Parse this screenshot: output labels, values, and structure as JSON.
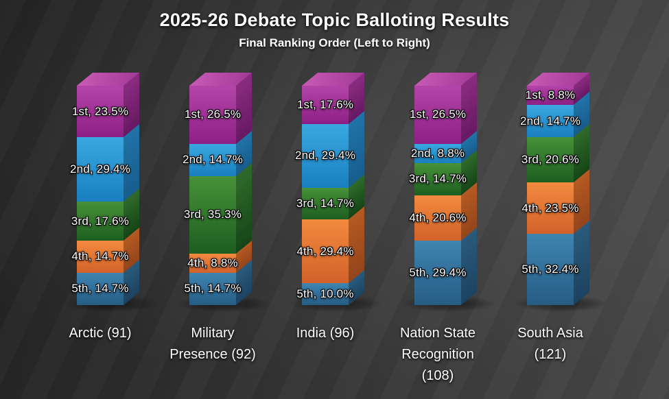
{
  "title": "2025-26 Debate Topic Balloting Results",
  "subtitle": "Final Ranking Order (Left to Right)",
  "chart_data": {
    "type": "bar",
    "subtype": "100-percent-stacked-3d-column",
    "title": "2025-26 Debate Topic Balloting Results",
    "subtitle": "Final Ranking Order (Left to Right)",
    "orientation": "vertical",
    "legend_position": "none",
    "grid": false,
    "axes_visible": false,
    "ranks": [
      "1st",
      "2nd",
      "3rd",
      "4th",
      "5th"
    ],
    "categories": [
      "Arctic (91)",
      "Military Presence (92)",
      "India (96)",
      "Nation State Recognition (108)",
      "South Asia (121)"
    ],
    "series": [
      {
        "name": "1st",
        "color": "#a23597",
        "values": [
          23.5,
          26.5,
          17.6,
          26.5,
          8.8
        ]
      },
      {
        "name": "2nd",
        "color": "#2796d0",
        "values": [
          29.4,
          14.7,
          29.4,
          8.8,
          14.7
        ]
      },
      {
        "name": "3rd",
        "color": "#2f7a2c",
        "values": [
          17.6,
          35.3,
          14.7,
          14.7,
          20.6
        ]
      },
      {
        "name": "4th",
        "color": "#e27532",
        "values": [
          14.7,
          8.8,
          29.4,
          20.6,
          23.5
        ]
      },
      {
        "name": "5th",
        "color": "#30709b",
        "values": [
          14.7,
          14.7,
          10.0,
          29.4,
          32.4
        ]
      }
    ],
    "bars": [
      {
        "category": "Arctic (91)",
        "segments": [
          {
            "rank": "1st",
            "pct": 23.5,
            "label": "1st, 23.5%"
          },
          {
            "rank": "2nd",
            "pct": 29.4,
            "label": "2nd, 29.4%"
          },
          {
            "rank": "3rd",
            "pct": 17.6,
            "label": "3rd, 17.6%"
          },
          {
            "rank": "4th",
            "pct": 14.7,
            "label": "4th, 14.7%"
          },
          {
            "rank": "5th",
            "pct": 14.7,
            "label": "5th, 14.7%"
          }
        ]
      },
      {
        "category": "Military Presence (92)",
        "segments": [
          {
            "rank": "1st",
            "pct": 26.5,
            "label": "1st, 26.5%"
          },
          {
            "rank": "2nd",
            "pct": 14.7,
            "label": "2nd, 14.7%"
          },
          {
            "rank": "3rd",
            "pct": 35.3,
            "label": "3rd, 35.3%"
          },
          {
            "rank": "4th",
            "pct": 8.8,
            "label": "4th, 8.8%"
          },
          {
            "rank": "5th",
            "pct": 14.7,
            "label": "5th, 14.7%"
          }
        ]
      },
      {
        "category": "India (96)",
        "segments": [
          {
            "rank": "1st",
            "pct": 17.6,
            "label": "1st, 17.6%"
          },
          {
            "rank": "2nd",
            "pct": 29.4,
            "label": "2nd, 29.4%"
          },
          {
            "rank": "3rd",
            "pct": 14.7,
            "label": "3rd, 14.7%"
          },
          {
            "rank": "4th",
            "pct": 29.4,
            "label": "4th, 29.4%"
          },
          {
            "rank": "5th",
            "pct": 10.0,
            "label": "5th, 10.0%"
          }
        ]
      },
      {
        "category": "Nation State Recognition (108)",
        "segments": [
          {
            "rank": "1st",
            "pct": 26.5,
            "label": "1st, 26.5%"
          },
          {
            "rank": "2nd",
            "pct": 8.8,
            "label": "2nd, 8.8%"
          },
          {
            "rank": "3rd",
            "pct": 14.7,
            "label": "3rd, 14.7%"
          },
          {
            "rank": "4th",
            "pct": 20.6,
            "label": "4th, 20.6%"
          },
          {
            "rank": "5th",
            "pct": 29.4,
            "label": "5th, 29.4%"
          }
        ]
      },
      {
        "category": "South Asia (121)",
        "segments": [
          {
            "rank": "1st",
            "pct": 8.8,
            "label": "1st, 8.8%"
          },
          {
            "rank": "2nd",
            "pct": 14.7,
            "label": "2nd, 14.7%"
          },
          {
            "rank": "3rd",
            "pct": 20.6,
            "label": "3rd, 20.6%"
          },
          {
            "rank": "4th",
            "pct": 23.5,
            "label": "4th, 23.5%"
          },
          {
            "rank": "5th",
            "pct": 32.4,
            "label": "5th, 32.4%"
          }
        ]
      }
    ],
    "palette": {
      "1st": {
        "front": [
          "#b345a8",
          "#8e1f86"
        ],
        "side": [
          "#8a2c80",
          "#671963"
        ],
        "top": [
          "#c95cb5",
          "#a23897"
        ]
      },
      "2nd": {
        "front": [
          "#3aa8e0",
          "#197fc0"
        ],
        "side": [
          "#2173a8",
          "#175d8c"
        ],
        "top": [
          "#5cb8e8",
          "#2e8fc8"
        ]
      },
      "3rd": {
        "front": [
          "#479138",
          "#1d5e21"
        ],
        "side": [
          "#2f6b2a",
          "#154517"
        ],
        "top": [
          "#5aa348",
          "#2e7a2c"
        ]
      },
      "4th": {
        "front": [
          "#f28a3e",
          "#d2622a"
        ],
        "side": [
          "#b55a22",
          "#94451b"
        ],
        "top": [
          "#f59c55",
          "#de7334"
        ]
      },
      "5th": {
        "front": [
          "#3f84b1",
          "#255d84"
        ],
        "side": [
          "#2a5b7c",
          "#1c4260"
        ],
        "top": [
          "#5496bf",
          "#2f6c94"
        ]
      }
    },
    "background_color": "#333333",
    "text_color": "#ffffff",
    "ylim": [
      0,
      100
    ]
  }
}
